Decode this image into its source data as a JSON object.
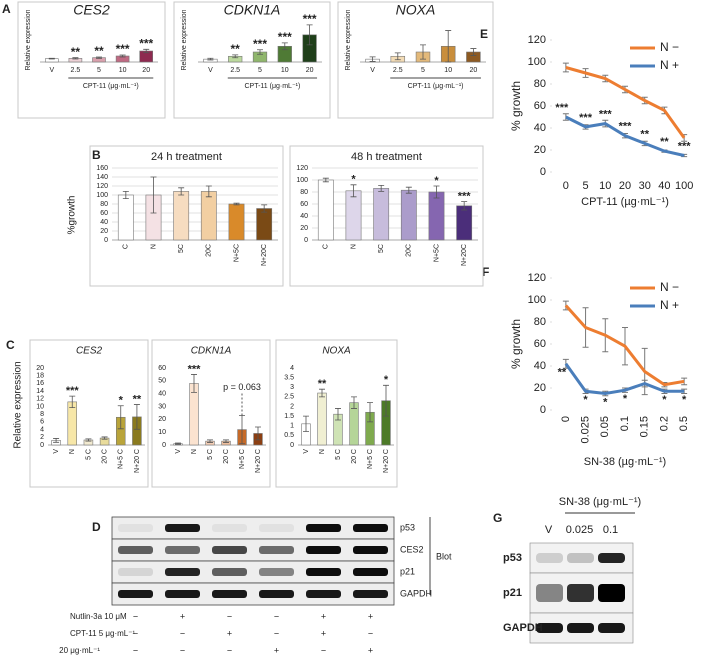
{
  "panel_letters": [
    "A",
    "B",
    "C",
    "D",
    "E",
    "F",
    "G"
  ],
  "chart_data": [
    {
      "type": "bar",
      "title": "CES2",
      "ylabel": "Relative expression",
      "xlabel": "CPT-11 (μg·mL⁻¹)",
      "categories": [
        "V",
        "2.5",
        "5",
        "10",
        "20"
      ],
      "values": [
        1,
        1.1,
        1.3,
        1.8,
        3.3
      ],
      "errors": [
        0.1,
        0.2,
        0.2,
        0.3,
        0.5
      ],
      "colors": [
        "#ffffff",
        "#ecd0d5",
        "#d9a0ad",
        "#c06a83",
        "#8e2a50"
      ],
      "significance": [
        null,
        "**",
        "**",
        "***",
        "***"
      ],
      "ylim": [
        0,
        12
      ]
    },
    {
      "type": "bar",
      "title": "CDKN1A",
      "ylabel": "Relative expression",
      "xlabel": "CPT-11 (μg·mL⁻¹)",
      "categories": [
        "V",
        "2.5",
        "5",
        "10",
        "20"
      ],
      "values": [
        1,
        2,
        3.5,
        5.5,
        9.5
      ],
      "errors": [
        0.3,
        0.5,
        0.8,
        1.2,
        3.5
      ],
      "colors": [
        "#ffffff",
        "#bcd99e",
        "#8fb66c",
        "#4f7a35",
        "#1f3f1a"
      ],
      "significance": [
        null,
        "**",
        "***",
        "***",
        "***"
      ],
      "ylim": [
        0,
        14
      ]
    },
    {
      "type": "bar",
      "title": "NOXA",
      "ylabel": "Relative expression",
      "xlabel": "CPT-11 (μg·mL⁻¹)",
      "categories": [
        "V",
        "2.5",
        "5",
        "10",
        "20"
      ],
      "values": [
        1,
        2,
        3.5,
        5.5,
        3.5
      ],
      "errors": [
        0.8,
        1.2,
        2.5,
        5.5,
        1.2
      ],
      "colors": [
        "#ffffff",
        "#f3dcb6",
        "#e3b97a",
        "#c98e3c",
        "#8d5a22"
      ],
      "significance": [
        null,
        null,
        null,
        null,
        null
      ],
      "ylim": [
        0,
        14
      ]
    },
    {
      "type": "bar",
      "title": "24 h treatment",
      "ylabel": "%growth",
      "categories": [
        "C",
        "N",
        "5C",
        "20C",
        "N+5C",
        "N+20C"
      ],
      "values": [
        100,
        100,
        108,
        108,
        80,
        70
      ],
      "errors": [
        8,
        40,
        8,
        12,
        2,
        8
      ],
      "colors": [
        "#ffffff",
        "#f4e1e4",
        "#f6dcc0",
        "#f2cfa2",
        "#d98a2a",
        "#7a4a15"
      ],
      "significance": [
        null,
        null,
        null,
        null,
        null,
        null
      ],
      "ylim": [
        0,
        160
      ],
      "yticks": [
        0,
        20,
        40,
        60,
        80,
        100,
        120,
        140,
        160
      ],
      "grid": true
    },
    {
      "type": "bar",
      "title": "48 h treatment",
      "categories": [
        "C",
        "N",
        "5C",
        "20C",
        "N+5C",
        "N+20C"
      ],
      "values": [
        100,
        82,
        86,
        83,
        80,
        57
      ],
      "errors": [
        3,
        10,
        5,
        5,
        10,
        7
      ],
      "colors": [
        "#ffffff",
        "#ddd6ea",
        "#c7bcdc",
        "#ab9ccb",
        "#8566b0",
        "#4b2e7a"
      ],
      "significance": [
        null,
        "*",
        null,
        null,
        "*",
        "***"
      ],
      "ylim": [
        0,
        120
      ],
      "yticks": [
        0,
        20,
        40,
        60,
        80,
        100,
        120
      ],
      "grid": true
    },
    {
      "type": "bar",
      "title": "CES2",
      "ylabel": "Relative expression",
      "categories": [
        "V",
        "N",
        "5 C",
        "20 C",
        "N+5 C",
        "N+20 C"
      ],
      "values": [
        1.2,
        11.2,
        1.3,
        1.8,
        7.2,
        7.3
      ],
      "errors": [
        0.5,
        1.5,
        0.3,
        0.3,
        3,
        3.2
      ],
      "colors": [
        "#ffffff",
        "#f7e7a8",
        "#f2ead0",
        "#e9dc9c",
        "#b9a43a",
        "#8a7a1e"
      ],
      "significance": [
        null,
        "***",
        null,
        null,
        "*",
        "**"
      ],
      "ylim": [
        0,
        20
      ],
      "yticks": [
        0,
        2,
        4,
        6,
        8,
        10,
        12,
        14,
        16,
        18,
        20
      ],
      "grid": false
    },
    {
      "type": "bar",
      "title": "CDKN1A",
      "categories": [
        "V",
        "N",
        "5 C",
        "20 C",
        "N+5 C",
        "N+20 C"
      ],
      "values": [
        1,
        48,
        3,
        3,
        12,
        9
      ],
      "errors": [
        0.5,
        7,
        1,
        1,
        11,
        5
      ],
      "colors": [
        "#ffffff",
        "#fbe3d0",
        "#f3cdb4",
        "#eebf9e",
        "#c66a28",
        "#8c3f12"
      ],
      "significance": [
        null,
        "***",
        null,
        null,
        null,
        null
      ],
      "annotation": "p = 0.063",
      "ylim": [
        0,
        60
      ],
      "yticks": [
        0,
        10,
        20,
        30,
        40,
        50,
        60
      ],
      "grid": false
    },
    {
      "type": "bar",
      "title": "NOXA",
      "categories": [
        "V",
        "N",
        "5 C",
        "20 C",
        "N+5 C",
        "N+20 C"
      ],
      "values": [
        1.1,
        2.7,
        1.6,
        2.2,
        1.7,
        2.3
      ],
      "errors": [
        0.4,
        0.2,
        0.3,
        0.3,
        0.5,
        0.8
      ],
      "colors": [
        "#ffffff",
        "#f0efd2",
        "#cfe3b5",
        "#b5d598",
        "#7faa4e",
        "#4d7a28"
      ],
      "significance": [
        null,
        "**",
        null,
        null,
        null,
        "*"
      ],
      "ylim": [
        0,
        4
      ],
      "yticks": [
        0,
        0.5,
        1,
        1.5,
        2,
        2.5,
        3,
        3.5,
        4
      ],
      "grid": false
    },
    {
      "type": "line",
      "ylabel": "% growth",
      "xlabel": "CPT-11 (µg·mL⁻¹)",
      "categories": [
        "0",
        "5",
        "10",
        "20",
        "30",
        "40",
        "100"
      ],
      "series": [
        {
          "name": "N −",
          "color": "#ed7d31",
          "values": [
            95,
            90,
            85,
            75,
            65,
            56,
            31
          ],
          "errors": [
            4,
            4,
            3,
            3,
            3,
            3,
            3
          ],
          "significance": [
            null,
            null,
            null,
            null,
            null,
            null,
            null
          ]
        },
        {
          "name": "N +",
          "color": "#4a7ebb",
          "values": [
            50,
            41,
            44,
            33,
            26,
            19,
            15
          ],
          "errors": [
            3,
            2,
            3,
            2,
            2,
            1,
            1
          ],
          "significance": [
            "***",
            "***",
            "***",
            "***",
            "**",
            "**",
            "***"
          ]
        }
      ],
      "ylim": [
        0,
        120
      ],
      "yticks": [
        0,
        20,
        40,
        60,
        80,
        100,
        120
      ]
    },
    {
      "type": "line",
      "ylabel": "% growth",
      "xlabel": "SN-38 (µg·mL⁻¹)",
      "categories": [
        "0",
        "0.025",
        "0.05",
        "0.1",
        "0.15",
        "0.2",
        "0.5"
      ],
      "series": [
        {
          "name": "N −",
          "color": "#ed7d31",
          "values": [
            95,
            75,
            68,
            58,
            35,
            23,
            26
          ],
          "errors": [
            4,
            18,
            15,
            17,
            21,
            2,
            3
          ],
          "significance": [
            null,
            null,
            null,
            null,
            null,
            null,
            null
          ]
        },
        {
          "name": "N +",
          "color": "#4a7ebb",
          "values": [
            42,
            17,
            15,
            18,
            24,
            17,
            17
          ],
          "errors": [
            4,
            2,
            2,
            2,
            3,
            2,
            2
          ],
          "significance": [
            "**",
            "*",
            "*",
            "*",
            null,
            "*",
            "*"
          ]
        }
      ],
      "ylim": [
        0,
        120
      ],
      "yticks": [
        0,
        20,
        40,
        60,
        80,
        100,
        120
      ]
    }
  ],
  "blot_d": {
    "rows": [
      "p53",
      "CES2",
      "p21",
      "GAPDH"
    ],
    "label": "Blot",
    "conditions": [
      {
        "label": "Nutlin-3a 10 μM",
        "signs": [
          "−",
          "+",
          "−",
          "−",
          "+",
          "+"
        ]
      },
      {
        "label": "CPT-11  5 μg·mL⁻¹",
        "signs": [
          "−",
          "−",
          "+",
          "−",
          "+",
          "−"
        ]
      },
      {
        "label": "20 μg·mL⁻¹",
        "signs": [
          "−",
          "−",
          "−",
          "+",
          "−",
          "+"
        ]
      }
    ]
  },
  "blot_g": {
    "title": "SN-38 (μg·mL⁻¹)",
    "lanes": [
      "V",
      "0.025",
      "0.1"
    ],
    "rows": [
      "p53",
      "p21",
      "GAPDH"
    ]
  }
}
